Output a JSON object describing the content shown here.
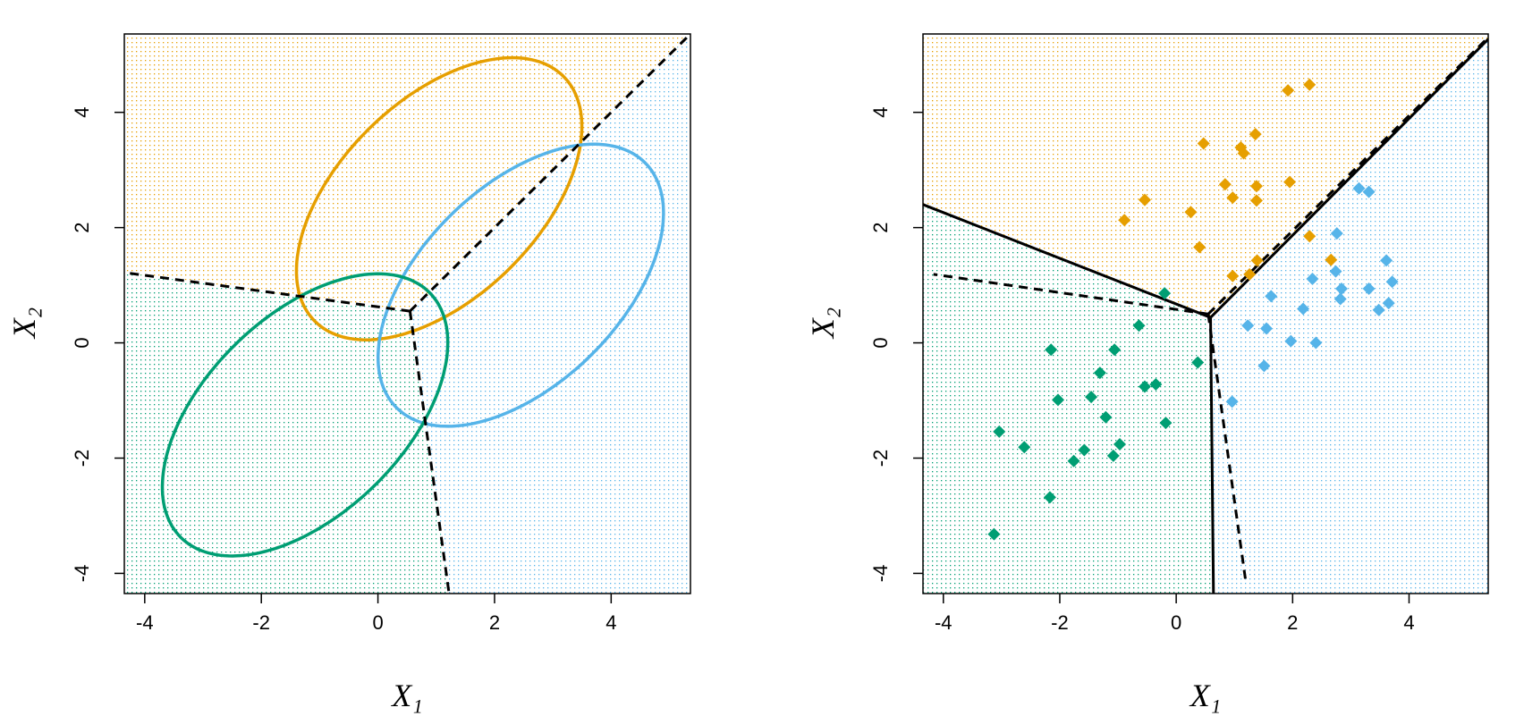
{
  "chart_data": [
    {
      "type": "ellipse",
      "xlabel": "X₁",
      "ylabel": "X₂",
      "xlim": [
        -4.35,
        5.36
      ],
      "ylim": [
        -4.35,
        5.36
      ],
      "xticks": [
        -4,
        -2,
        0,
        2,
        4
      ],
      "yticks": [
        -4,
        -2,
        0,
        2,
        4
      ],
      "ellipses": [
        {
          "color": "#E69F00",
          "cx": 1.05,
          "cy": 2.5,
          "rx": 3.01,
          "ry": 1.71,
          "angle": 45
        },
        {
          "color": "#56B4E9",
          "cx": 2.45,
          "cy": 1.0,
          "rx": 3.01,
          "ry": 1.71,
          "angle": 45
        },
        {
          "color": "#009E73",
          "cx": -1.25,
          "cy": -1.25,
          "rx": 3.01,
          "ry": 1.71,
          "angle": 45
        }
      ],
      "boundaries": [
        {
          "style": "dashed",
          "color": "#000000",
          "junction": [
            0.55,
            0.55
          ],
          "ends": [
            [
              5.36,
              5.36
            ],
            [
              -4.35,
              1.22
            ],
            [
              1.22,
              -4.35
            ]
          ],
          "region_colors": [
            "#E69F00",
            "#009E73",
            "#56B4E9"
          ]
        }
      ]
    },
    {
      "type": "scatter",
      "xlabel": "X₁",
      "ylabel": "X₂",
      "xlim": [
        -4.35,
        5.36
      ],
      "ylim": [
        -4.35,
        5.36
      ],
      "xticks": [
        -4,
        -2,
        0,
        2,
        4
      ],
      "yticks": [
        -4,
        -2,
        0,
        2,
        4
      ],
      "series": [
        {
          "color": "#E69F00",
          "x": [
            2.29,
            1.92,
            0.47,
            1.36,
            1.11,
            1.16,
            -0.54,
            0.84,
            1.38,
            1.95,
            0.97,
            1.38,
            0.25,
            -0.89,
            2.29,
            0.4,
            2.66,
            1.39,
            0.97,
            1.26
          ],
          "y": [
            4.48,
            4.38,
            3.46,
            3.62,
            3.39,
            3.29,
            2.48,
            2.75,
            2.72,
            2.79,
            2.52,
            2.47,
            2.27,
            2.13,
            1.85,
            1.66,
            1.44,
            1.43,
            1.16,
            1.19
          ]
        },
        {
          "color": "#56B4E9",
          "x": [
            3.14,
            3.31,
            2.76,
            3.61,
            2.74,
            2.34,
            3.71,
            1.63,
            2.84,
            3.31,
            2.82,
            3.65,
            3.48,
            2.18,
            1.23,
            1.55,
            1.97,
            2.4,
            1.51,
            0.96
          ],
          "y": [
            2.68,
            2.62,
            1.9,
            1.43,
            1.24,
            1.11,
            1.06,
            0.81,
            0.94,
            0.94,
            0.76,
            0.69,
            0.57,
            0.59,
            0.3,
            0.25,
            0.03,
            0.0,
            -0.4,
            -1.02
          ]
        },
        {
          "color": "#009E73",
          "x": [
            -0.2,
            -0.64,
            -2.15,
            -1.06,
            0.37,
            -1.31,
            -0.54,
            -0.35,
            -1.46,
            -2.03,
            -0.18,
            -1.21,
            -3.04,
            -0.97,
            -2.61,
            -1.58,
            -1.08,
            -1.76,
            -2.17,
            -3.13
          ],
          "y": [
            0.86,
            0.3,
            -0.12,
            -0.12,
            -0.34,
            -0.52,
            -0.76,
            -0.72,
            -0.94,
            -0.99,
            -1.39,
            -1.29,
            -1.54,
            -1.76,
            -1.81,
            -1.86,
            -1.96,
            -2.05,
            -2.68,
            -3.32
          ]
        }
      ],
      "boundaries": [
        {
          "style": "solid",
          "color": "#000000",
          "junction": [
            0.59,
            0.44
          ],
          "ends": [
            [
              5.36,
              5.27
            ],
            [
              -4.35,
              2.4
            ],
            [
              0.64,
              -4.35
            ]
          ],
          "region_colors": [
            "#E69F00",
            "#009E73",
            "#56B4E9"
          ]
        },
        {
          "style": "dashed",
          "color": "#000000",
          "junction": [
            0.55,
            0.5
          ],
          "ends": [
            [
              5.36,
              5.3
            ],
            [
              -4.17,
              1.19
            ],
            [
              1.2,
              -4.18
            ]
          ]
        }
      ]
    }
  ]
}
